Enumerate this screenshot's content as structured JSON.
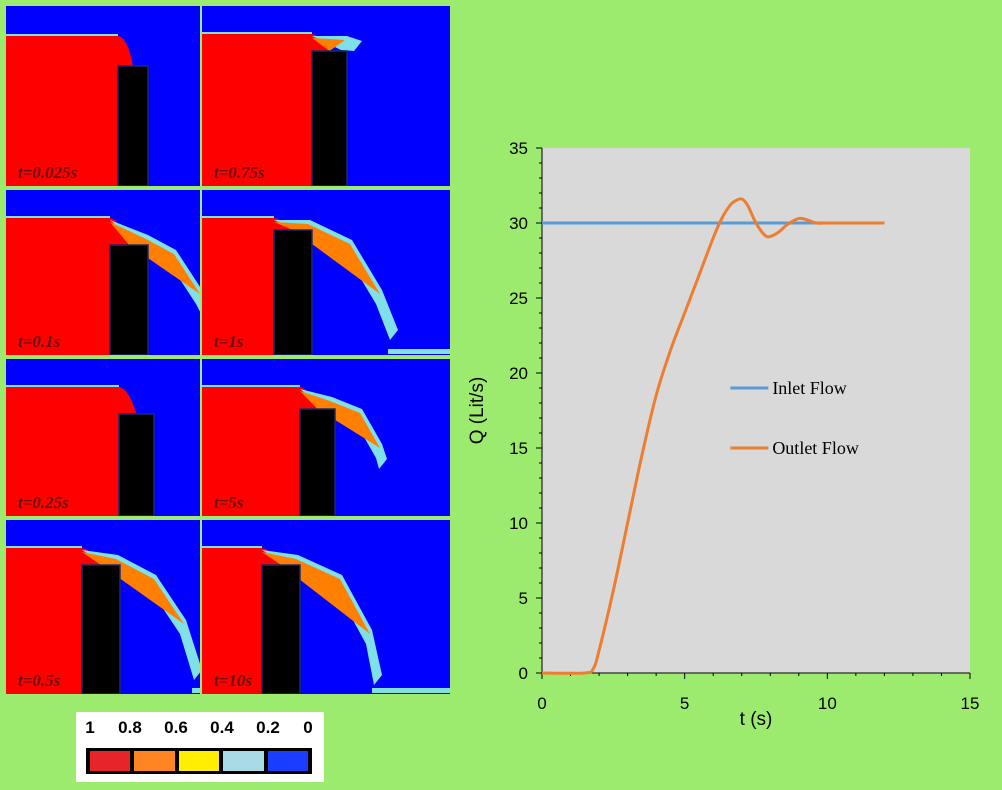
{
  "simulation": {
    "colors": {
      "water": "#fe0000",
      "air": "#0000ff",
      "obstacle": "#000000",
      "mid_high": "#ff8000",
      "mid": "#ffff00",
      "low": "#80e0e8"
    },
    "panels": [
      {
        "caption": "t=0.025s",
        "stage": 0
      },
      {
        "caption": "t=0.75s",
        "stage": 4
      },
      {
        "caption": "t=0.1s",
        "stage": 1
      },
      {
        "caption": "t=1s",
        "stage": 5
      },
      {
        "caption": "t=0.25s",
        "stage": 2
      },
      {
        "caption": "t=5s",
        "stage": 6
      },
      {
        "caption": "t=0.5s",
        "stage": 3
      },
      {
        "caption": "t=10s",
        "stage": 7
      }
    ]
  },
  "color_legend": {
    "labels": [
      "1",
      "0.8",
      "0.6",
      "0.4",
      "0.2",
      "0"
    ],
    "colors": [
      "#e8242b",
      "#ff8522",
      "#ffee00",
      "#a8dbe6",
      "#1b3dff"
    ]
  },
  "chart_data": {
    "type": "line",
    "xlabel": "t (s)",
    "ylabel": "Q (Lit/s)",
    "xlim": [
      0,
      15
    ],
    "ylim": [
      0,
      35
    ],
    "xticks": [
      0,
      5,
      10,
      15
    ],
    "yticks": [
      0,
      5,
      10,
      15,
      20,
      25,
      30,
      35
    ],
    "grid": false,
    "legend_position": "center-right",
    "plot_background": "#d9d9d9",
    "series": [
      {
        "name": "Inlet Flow",
        "color": "#5b9bd5",
        "x": [
          0,
          12
        ],
        "y": [
          30,
          30
        ]
      },
      {
        "name": "Outlet Flow",
        "color": "#ed7d31",
        "x": [
          0,
          1.5,
          1.8,
          2.0,
          2.5,
          3,
          3.5,
          4,
          4.5,
          5,
          5.5,
          6,
          6.3,
          6.6,
          6.8,
          7.0,
          7.2,
          7.5,
          7.8,
          8.0,
          8.3,
          8.6,
          9.0,
          9.3,
          9.6,
          10,
          10.5,
          11,
          12
        ],
        "y": [
          0,
          0,
          0.3,
          1.5,
          5.5,
          10,
          14.5,
          18.5,
          21.5,
          24,
          26.5,
          29,
          30.3,
          31.2,
          31.5,
          31.6,
          31.2,
          30,
          29.2,
          29.1,
          29.4,
          29.9,
          30.3,
          30.2,
          30.0,
          30.0,
          30.0,
          30.0,
          30.0
        ]
      }
    ]
  }
}
